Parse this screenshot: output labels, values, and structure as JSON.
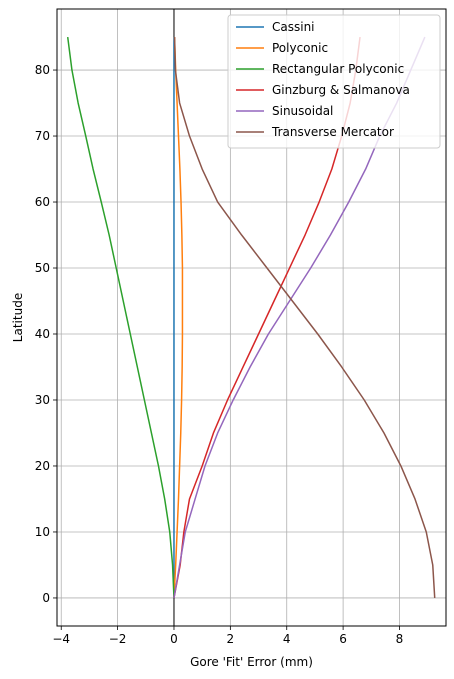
{
  "chart_data": {
    "type": "line",
    "title": "",
    "xlabel": "Gore 'Fit' Error (mm)",
    "ylabel": "Latitude",
    "xlim": [
      -4.15,
      9.65
    ],
    "ylim": [
      -4.25,
      89.25
    ],
    "xticks": [
      -4,
      -2,
      0,
      2,
      4,
      6,
      8
    ],
    "yticks": [
      0,
      10,
      20,
      30,
      40,
      50,
      60,
      70,
      80
    ],
    "grid": true,
    "zero_line_x": 0,
    "legend_position": "top-right",
    "series": [
      {
        "name": "Cassini",
        "color": "#1f77b4",
        "points": [
          [
            0,
            0
          ],
          [
            0,
            5
          ],
          [
            0,
            10
          ],
          [
            0,
            15
          ],
          [
            0,
            20
          ],
          [
            0,
            25
          ],
          [
            0,
            30
          ],
          [
            0,
            35
          ],
          [
            0,
            40
          ],
          [
            0,
            45
          ],
          [
            0,
            50
          ],
          [
            0,
            55
          ],
          [
            0,
            60
          ],
          [
            0,
            65
          ],
          [
            0,
            70
          ],
          [
            0,
            75
          ],
          [
            0,
            80
          ],
          [
            0,
            85
          ]
        ]
      },
      {
        "name": "Polyconic",
        "color": "#ff7f0e",
        "points": [
          [
            0,
            0
          ],
          [
            0.06,
            5
          ],
          [
            0.11,
            10
          ],
          [
            0.16,
            15
          ],
          [
            0.2,
            20
          ],
          [
            0.24,
            25
          ],
          [
            0.27,
            30
          ],
          [
            0.29,
            35
          ],
          [
            0.3,
            40
          ],
          [
            0.3,
            45
          ],
          [
            0.3,
            50
          ],
          [
            0.28,
            55
          ],
          [
            0.25,
            60
          ],
          [
            0.21,
            65
          ],
          [
            0.16,
            70
          ],
          [
            0.11,
            75
          ],
          [
            0.06,
            80
          ],
          [
            0.02,
            85
          ]
        ]
      },
      {
        "name": "Rectangular Polyconic",
        "color": "#2ca02c",
        "points": [
          [
            0,
            0
          ],
          [
            -0.05,
            5
          ],
          [
            -0.15,
            10
          ],
          [
            -0.33,
            15
          ],
          [
            -0.55,
            20
          ],
          [
            -0.8,
            25
          ],
          [
            -1.05,
            30
          ],
          [
            -1.3,
            35
          ],
          [
            -1.55,
            40
          ],
          [
            -1.8,
            45
          ],
          [
            -2.05,
            50
          ],
          [
            -2.3,
            55
          ],
          [
            -2.58,
            60
          ],
          [
            -2.87,
            65
          ],
          [
            -3.13,
            70
          ],
          [
            -3.4,
            75
          ],
          [
            -3.62,
            80
          ],
          [
            -3.77,
            85
          ]
        ]
      },
      {
        "name": "Ginzburg & Salmanova",
        "color": "#d62728",
        "points": [
          [
            0,
            0
          ],
          [
            0.22,
            5
          ],
          [
            0.35,
            10
          ],
          [
            0.55,
            15
          ],
          [
            1.0,
            20
          ],
          [
            1.4,
            25
          ],
          [
            1.9,
            30
          ],
          [
            2.45,
            35
          ],
          [
            3.0,
            40
          ],
          [
            3.55,
            45
          ],
          [
            4.1,
            50
          ],
          [
            4.65,
            55
          ],
          [
            5.15,
            60
          ],
          [
            5.6,
            65
          ],
          [
            5.95,
            70
          ],
          [
            6.25,
            75
          ],
          [
            6.45,
            80
          ],
          [
            6.6,
            85
          ]
        ]
      },
      {
        "name": "Sinusoidal",
        "color": "#9467bd",
        "points": [
          [
            0,
            0
          ],
          [
            0.2,
            5
          ],
          [
            0.4,
            10
          ],
          [
            0.75,
            15
          ],
          [
            1.1,
            20
          ],
          [
            1.55,
            25
          ],
          [
            2.1,
            30
          ],
          [
            2.7,
            35
          ],
          [
            3.35,
            40
          ],
          [
            4.1,
            45
          ],
          [
            4.85,
            50
          ],
          [
            5.55,
            55
          ],
          [
            6.2,
            60
          ],
          [
            6.8,
            65
          ],
          [
            7.3,
            70
          ],
          [
            7.9,
            75
          ],
          [
            8.4,
            80
          ],
          [
            8.9,
            85
          ]
        ]
      },
      {
        "name": "Transverse Mercator",
        "color": "#8c564b",
        "points": [
          [
            9.25,
            0
          ],
          [
            9.18,
            5
          ],
          [
            8.95,
            10
          ],
          [
            8.55,
            15
          ],
          [
            8.05,
            20
          ],
          [
            7.45,
            25
          ],
          [
            6.75,
            30
          ],
          [
            5.95,
            35
          ],
          [
            5.1,
            40
          ],
          [
            4.2,
            45
          ],
          [
            3.3,
            50
          ],
          [
            2.4,
            55
          ],
          [
            1.55,
            60
          ],
          [
            1.0,
            65
          ],
          [
            0.55,
            70
          ],
          [
            0.2,
            75
          ],
          [
            0.05,
            80
          ],
          [
            0.02,
            85
          ]
        ]
      }
    ]
  }
}
